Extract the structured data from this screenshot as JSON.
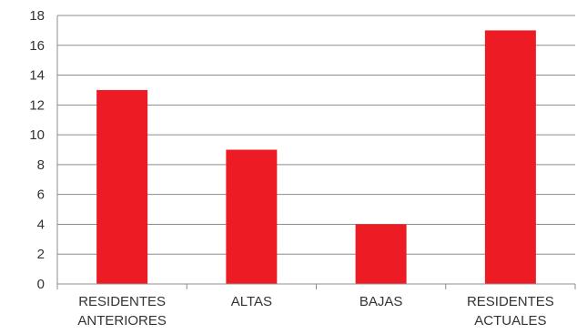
{
  "chart_data": {
    "type": "bar",
    "categories": [
      [
        "RESIDENTES",
        "ANTERIORES"
      ],
      [
        "ALTAS"
      ],
      [
        "BAJAS"
      ],
      [
        "RESIDENTES",
        "ACTUALES"
      ]
    ],
    "values": [
      13,
      9,
      4,
      17
    ],
    "ylim": [
      0,
      18
    ],
    "yticks": [
      0,
      2,
      4,
      6,
      8,
      10,
      12,
      14,
      16,
      18
    ],
    "grid": true,
    "legend": "none",
    "bar_color": "#ed1c24"
  }
}
